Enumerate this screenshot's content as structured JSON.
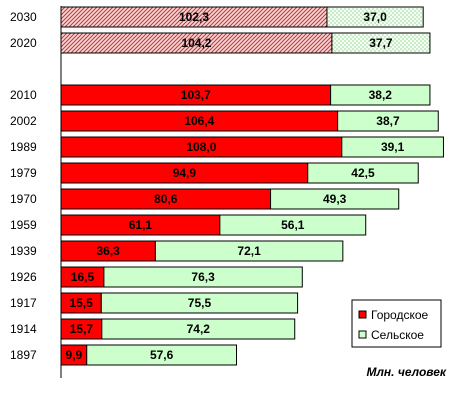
{
  "chart_data": {
    "type": "bar",
    "orientation": "horizontal",
    "stacked": true,
    "categories": [
      "2030",
      "2020",
      "2010",
      "2002",
      "1989",
      "1979",
      "1970",
      "1959",
      "1939",
      "1926",
      "1917",
      "1914",
      "1897"
    ],
    "series": [
      {
        "name": "Городское",
        "values": [
          102.3,
          104.2,
          103.7,
          106.4,
          108.0,
          94.9,
          80.6,
          61.1,
          36.3,
          16.5,
          15.5,
          15.7,
          9.9
        ],
        "labels": [
          "102,3",
          "104,2",
          "103,7",
          "106,4",
          "108,0",
          "94,9",
          "80,6",
          "61,1",
          "36,3",
          "16,5",
          "15,5",
          "15,7",
          "9,9"
        ]
      },
      {
        "name": "Сельское",
        "values": [
          37.0,
          37.7,
          38.2,
          38.7,
          39.1,
          42.5,
          49.3,
          56.1,
          72.1,
          76.3,
          75.5,
          74.2,
          57.6
        ],
        "labels": [
          "37,0",
          "37,7",
          "38,2",
          "38,7",
          "39,1",
          "42,5",
          "49,3",
          "56,1",
          "72,1",
          "76,3",
          "75,5",
          "74,2",
          "57,6"
        ]
      }
    ],
    "projected_categories": [
      "2030",
      "2020"
    ],
    "unit_label": "Млн. человек",
    "legend_position": "bottom-right",
    "grid": false
  },
  "colors": {
    "urban": "#ff0000",
    "urban_border": "#000000",
    "rural": "#ccffcc",
    "rural_border": "#000000",
    "projected_urban_hatch": "#cc3333",
    "projected_urban_background": "#f3d6d6",
    "projected_rural_hatch": "#66bb66",
    "projected_rural_background": "#f4fff4"
  }
}
